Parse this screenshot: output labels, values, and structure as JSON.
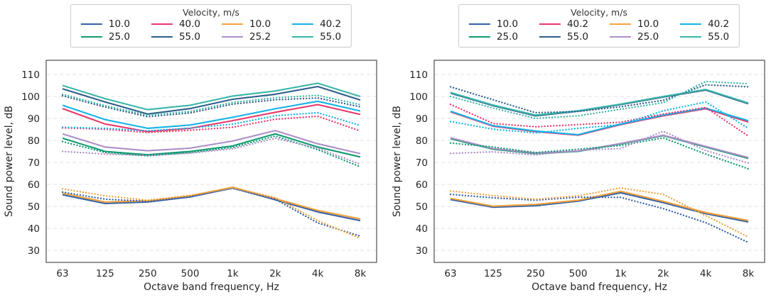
{
  "figure": {
    "background": "#ffffff",
    "grid_color": "#e2e2e2",
    "spine_color": "#3d3d3d",
    "text_color": "#262626"
  },
  "chart_data": [
    {
      "type": "line",
      "legend_title": "Velocity, m/s",
      "legend_position": "top-center",
      "xlabel": "Octave band frequency, Hz",
      "ylabel": "Sound power level, dB",
      "categories": [
        "63",
        "125",
        "250",
        "500",
        "1k",
        "2k",
        "4k",
        "8k"
      ],
      "yticks": [
        30,
        40,
        50,
        60,
        70,
        80,
        90,
        100,
        110
      ],
      "ylim": [
        24,
        116
      ],
      "grid": true,
      "legend": [
        {
          "label": "10.0",
          "color": "#3562a7"
        },
        {
          "label": "40.0",
          "color": "#e8396b"
        },
        {
          "label": "10.0",
          "color": "#f3a23c"
        },
        {
          "label": "40.2",
          "color": "#16b3e8"
        },
        {
          "label": "25.0",
          "color": "#119b72"
        },
        {
          "label": "55.0",
          "color": "#2f5f8a"
        },
        {
          "label": "25.2",
          "color": "#ad8fc7"
        },
        {
          "label": "55.0",
          "color": "#3ab6a9"
        }
      ],
      "series": [
        {
          "label": "10.0",
          "group": "A",
          "style": "solid",
          "color": "#3562a7",
          "values": [
            55.3,
            51.3,
            52.0,
            54.3,
            58.4,
            53.0,
            47.5,
            43.5
          ]
        },
        {
          "label": "25.0",
          "group": "A",
          "style": "solid",
          "color": "#119b72",
          "values": [
            81.0,
            75.0,
            73.5,
            75.0,
            77.5,
            83.0,
            77.0,
            72.5
          ]
        },
        {
          "label": "40.0",
          "group": "A",
          "style": "solid",
          "color": "#e8396b",
          "values": [
            94.5,
            87.5,
            84.0,
            85.5,
            89.0,
            92.8,
            96.3,
            91.8
          ]
        },
        {
          "label": "55.0",
          "group": "A",
          "style": "solid",
          "color": "#2f5f8a",
          "values": [
            103.5,
            97.5,
            92.0,
            94.5,
            98.7,
            101.0,
            104.5,
            98.4
          ]
        },
        {
          "label": "10.0",
          "group": "B",
          "style": "solid",
          "color": "#f3a23c",
          "values": [
            56.0,
            52.0,
            52.5,
            54.8,
            58.7,
            53.5,
            48.2,
            44.3
          ]
        },
        {
          "label": "25.2",
          "group": "B",
          "style": "solid",
          "color": "#ad8fc7",
          "values": [
            83.0,
            77.0,
            75.3,
            76.5,
            79.7,
            84.5,
            78.5,
            74.0
          ]
        },
        {
          "label": "40.2",
          "group": "B",
          "style": "solid",
          "color": "#16b3e8",
          "values": [
            96.0,
            89.5,
            85.5,
            87.0,
            90.5,
            94.4,
            97.8,
            93.4
          ]
        },
        {
          "label": "55.0",
          "group": "B",
          "style": "solid",
          "color": "#3ab6a9",
          "values": [
            105.0,
            99.0,
            94.0,
            96.0,
            100.2,
            102.5,
            106.0,
            100.0
          ]
        },
        {
          "label": "10.0",
          "group": "A",
          "style": "dotted",
          "color": "#3562a7",
          "values": [
            56.5,
            53.3,
            52.3,
            54.5,
            58.2,
            53.3,
            42.5,
            36.5
          ]
        },
        {
          "label": "25.0",
          "group": "A",
          "style": "dotted",
          "color": "#119b72",
          "values": [
            79.5,
            74.5,
            73.0,
            74.5,
            76.8,
            82.0,
            75.8,
            68.0
          ]
        },
        {
          "label": "40.0",
          "group": "A",
          "style": "dotted",
          "color": "#e8396b",
          "values": [
            85.7,
            85.1,
            83.6,
            84.6,
            86.0,
            89.6,
            91.0,
            84.3
          ]
        },
        {
          "label": "55.0",
          "group": "A",
          "style": "dotted",
          "color": "#2f5f8a",
          "values": [
            100.3,
            95.2,
            90.8,
            92.5,
            96.5,
            98.5,
            99.3,
            95.3
          ]
        },
        {
          "label": "10.0",
          "group": "B",
          "style": "dotted",
          "color": "#f3a23c",
          "values": [
            58.0,
            54.8,
            52.8,
            55.0,
            58.5,
            54.0,
            43.5,
            35.5
          ]
        },
        {
          "label": "25.2",
          "group": "B",
          "style": "dotted",
          "color": "#ad8fc7",
          "values": [
            75.0,
            73.8,
            73.2,
            74.2,
            76.2,
            81.0,
            76.5,
            69.2
          ]
        },
        {
          "label": "40.2",
          "group": "B",
          "style": "dotted",
          "color": "#16b3e8",
          "values": [
            86.0,
            85.5,
            84.4,
            85.6,
            87.4,
            91.2,
            92.6,
            86.8
          ]
        },
        {
          "label": "55.0",
          "group": "B",
          "style": "dotted",
          "color": "#3ab6a9",
          "values": [
            101.0,
            95.8,
            91.5,
            93.2,
            97.3,
            99.4,
            100.5,
            96.3
          ]
        }
      ]
    },
    {
      "type": "line",
      "legend_title": "Velocity, m/s",
      "legend_position": "top-center",
      "xlabel": "Octave band frequency, Hz",
      "ylabel": "Sound power level, dB",
      "categories": [
        "63",
        "125",
        "250",
        "500",
        "1k",
        "2k",
        "4k",
        "8k"
      ],
      "yticks": [
        30,
        40,
        50,
        60,
        70,
        80,
        90,
        100,
        110
      ],
      "ylim": [
        24,
        116
      ],
      "grid": true,
      "legend": [
        {
          "label": "10.0",
          "color": "#3562a7"
        },
        {
          "label": "40.2",
          "color": "#e8396b"
        },
        {
          "label": "10.0",
          "color": "#f3a23c"
        },
        {
          "label": "40.2",
          "color": "#16b3e8"
        },
        {
          "label": "25.0",
          "color": "#119b72"
        },
        {
          "label": "55.0",
          "color": "#2f5f8a"
        },
        {
          "label": "25.0",
          "color": "#ad8fc7"
        },
        {
          "label": "55.0",
          "color": "#3ab6a9"
        }
      ],
      "series": [
        {
          "label": "10.0",
          "group": "A",
          "style": "solid",
          "color": "#3562a7",
          "values": [
            53.1,
            49.6,
            50.3,
            52.4,
            56.2,
            51.7,
            46.7,
            42.9
          ]
        },
        {
          "label": "25.0",
          "group": "A",
          "style": "solid",
          "color": "#119b72",
          "values": [
            80.8,
            76.0,
            74.0,
            75.0,
            78.4,
            82.2,
            77.0,
            71.8
          ]
        },
        {
          "label": "40.2",
          "group": "A",
          "style": "solid",
          "color": "#e8396b",
          "values": [
            93.0,
            86.5,
            84.0,
            82.4,
            87.2,
            91.2,
            94.4,
            88.4
          ]
        },
        {
          "label": "55.0",
          "group": "A",
          "style": "solid",
          "color": "#2f5f8a",
          "values": [
            101.5,
            95.8,
            91.2,
            93.3,
            96.3,
            99.7,
            102.9,
            96.7
          ]
        },
        {
          "label": "10.0",
          "group": "B",
          "style": "solid",
          "color": "#f3a23c",
          "values": [
            53.6,
            50.1,
            50.9,
            52.8,
            56.9,
            52.3,
            47.2,
            43.6
          ]
        },
        {
          "label": "25.0",
          "group": "B",
          "style": "solid",
          "color": "#ad8fc7",
          "values": [
            81.2,
            76.3,
            74.3,
            75.2,
            78.6,
            82.4,
            77.3,
            72.2
          ]
        },
        {
          "label": "40.2",
          "group": "B",
          "style": "solid",
          "color": "#16b3e8",
          "values": [
            93.3,
            86.7,
            84.3,
            82.6,
            87.5,
            91.5,
            94.7,
            89.0
          ]
        },
        {
          "label": "55.0",
          "group": "B",
          "style": "solid",
          "color": "#3ab6a9",
          "values": [
            101.8,
            96.1,
            91.5,
            93.5,
            96.5,
            100.0,
            103.2,
            97.0
          ]
        },
        {
          "label": "10.0",
          "group": "A",
          "style": "dotted",
          "color": "#3562a7",
          "values": [
            55.5,
            53.9,
            52.8,
            54.2,
            54.1,
            49.0,
            42.6,
            33.6
          ]
        },
        {
          "label": "25.0",
          "group": "A",
          "style": "dotted",
          "color": "#119b72",
          "values": [
            78.8,
            77.0,
            74.5,
            76.0,
            77.7,
            81.2,
            73.8,
            67.1
          ]
        },
        {
          "label": "40.2",
          "group": "A",
          "style": "dotted",
          "color": "#e8396b",
          "values": [
            96.4,
            87.7,
            86.2,
            87.2,
            88.3,
            92.0,
            95.0,
            82.0
          ]
        },
        {
          "label": "55.0",
          "group": "A",
          "style": "dotted",
          "color": "#2f5f8a",
          "values": [
            104.4,
            98.5,
            92.6,
            93.2,
            95.3,
            98.3,
            105.3,
            104.4
          ]
        },
        {
          "label": "10.0",
          "group": "B",
          "style": "dotted",
          "color": "#f3a23c",
          "values": [
            57.0,
            54.9,
            53.3,
            54.8,
            58.4,
            55.5,
            45.8,
            36.1
          ]
        },
        {
          "label": "25.0",
          "group": "B",
          "style": "dotted",
          "color": "#ad8fc7",
          "values": [
            74.1,
            74.8,
            73.4,
            75.5,
            76.3,
            84.2,
            75.4,
            69.7
          ]
        },
        {
          "label": "40.2",
          "group": "B",
          "style": "dotted",
          "color": "#16b3e8",
          "values": [
            88.6,
            85.1,
            83.4,
            85.5,
            87.2,
            93.5,
            97.5,
            85.5
          ]
        },
        {
          "label": "55.0",
          "group": "B",
          "style": "dotted",
          "color": "#3ab6a9",
          "values": [
            100.0,
            94.7,
            90.0,
            91.2,
            94.2,
            97.2,
            106.8,
            105.8
          ]
        }
      ]
    }
  ]
}
